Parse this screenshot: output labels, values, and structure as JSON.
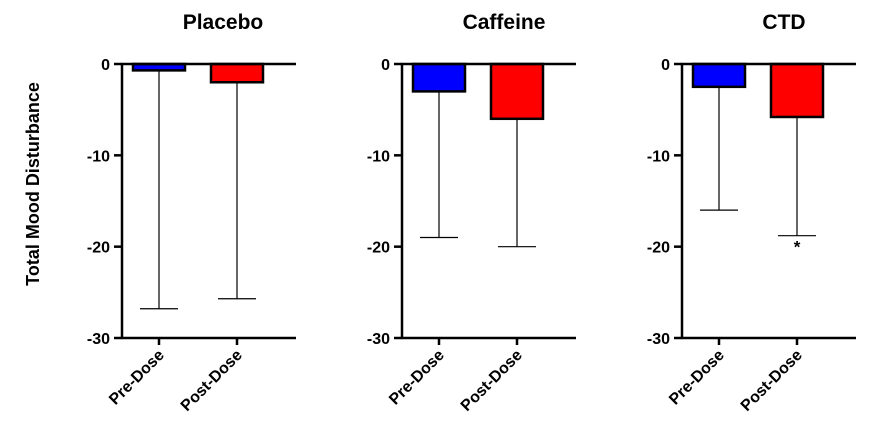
{
  "figure": {
    "ylabel": "Total Mood Disturbance"
  },
  "colors": {
    "pre_dose": "#0000ff",
    "post_dose": "#ff0000",
    "axis": "#000000"
  },
  "chart_data": [
    {
      "type": "bar",
      "title": "Placebo",
      "categories": [
        "Pre-Dose",
        "Post-Dose"
      ],
      "values": [
        -0.7,
        -2.0
      ],
      "error_lower": [
        -26.8,
        -25.7
      ],
      "ylim": [
        -30,
        0
      ],
      "yticks": [
        0,
        -10,
        -20,
        -30
      ],
      "annotations": [
        "",
        ""
      ]
    },
    {
      "type": "bar",
      "title": "Caffeine",
      "categories": [
        "Pre-Dose",
        "Post-Dose"
      ],
      "values": [
        -3.0,
        -6.0
      ],
      "error_lower": [
        -19.0,
        -20.0
      ],
      "ylim": [
        -30,
        0
      ],
      "yticks": [
        0,
        -10,
        -20,
        -30
      ],
      "annotations": [
        "",
        ""
      ]
    },
    {
      "type": "bar",
      "title": "CTD",
      "categories": [
        "Pre-Dose",
        "Post-Dose"
      ],
      "values": [
        -2.5,
        -5.8
      ],
      "error_lower": [
        -16.0,
        -18.8
      ],
      "ylim": [
        -30,
        0
      ],
      "yticks": [
        0,
        -10,
        -20,
        -30
      ],
      "annotations": [
        "",
        "*"
      ]
    }
  ]
}
